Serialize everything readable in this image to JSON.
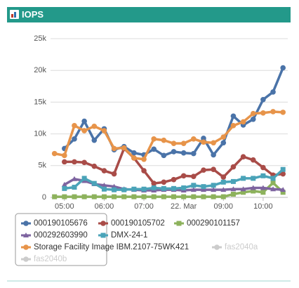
{
  "chart_data": {
    "type": "line",
    "title": "IOPS",
    "x": [
      4.75,
      5.0,
      5.25,
      5.5,
      5.75,
      6.0,
      6.25,
      6.5,
      6.75,
      7.0,
      7.25,
      7.5,
      7.75,
      8.0,
      8.25,
      8.5,
      8.75,
      9.0,
      9.25,
      9.5,
      9.75,
      10.0,
      10.25,
      10.5
    ],
    "xlim": [
      4.65,
      10.62
    ],
    "xticks": [
      {
        "value": 5,
        "label": "05:00"
      },
      {
        "value": 6,
        "label": "06:00"
      },
      {
        "value": 7,
        "label": "07:00"
      },
      {
        "value": 8,
        "label": "22. Mar"
      },
      {
        "value": 9,
        "label": "09:00"
      },
      {
        "value": 10,
        "label": "10:00"
      }
    ],
    "ylim": [
      0,
      25000
    ],
    "yticks": [
      {
        "value": 0,
        "label": "0"
      },
      {
        "value": 5000,
        "label": "5k"
      },
      {
        "value": 10000,
        "label": "10k"
      },
      {
        "value": 15000,
        "label": "15k"
      },
      {
        "value": 20000,
        "label": "20k"
      },
      {
        "value": 25000,
        "label": "25k"
      }
    ],
    "grid": true,
    "series": [
      {
        "name": "000190105676",
        "color": "#4a73a8",
        "marker": "circle",
        "values": [
          null,
          7700,
          9200,
          12000,
          9000,
          10800,
          7500,
          8000,
          7000,
          6700,
          7600,
          6600,
          7200,
          7000,
          6900,
          9300,
          6700,
          8600,
          12800,
          11400,
          12300,
          15400,
          16600,
          20400
        ]
      },
      {
        "name": "000190105702",
        "color": "#a94c48",
        "marker": "circle",
        "values": [
          null,
          5600,
          5600,
          5500,
          4900,
          4200,
          3700,
          7700,
          6200,
          4200,
          2200,
          2400,
          2800,
          3400,
          3300,
          4300,
          4400,
          3200,
          4800,
          6400,
          5900,
          4700,
          3500,
          3700
        ]
      },
      {
        "name": "000290101157",
        "color": "#8db25c",
        "marker": "square",
        "values": [
          100,
          100,
          100,
          100,
          100,
          100,
          100,
          100,
          100,
          100,
          100,
          100,
          100,
          100,
          100,
          100,
          100,
          100,
          500,
          800,
          1000,
          800,
          2300,
          800
        ]
      },
      {
        "name": "000292603990",
        "color": "#7e64a0",
        "marker": "triangle",
        "values": [
          null,
          2000,
          2900,
          2600,
          2100,
          1900,
          1700,
          1300,
          1200,
          1100,
          1100,
          1200,
          1200,
          1100,
          1200,
          1200,
          1200,
          1200,
          1300,
          1300,
          1500,
          1500,
          1300,
          1200
        ]
      },
      {
        "name": "DMX-24-1",
        "color": "#4aa3b8",
        "marker": "square",
        "values": [
          null,
          1400,
          1600,
          3000,
          2200,
          1300,
          1200,
          1200,
          1300,
          1300,
          1500,
          1400,
          1400,
          1500,
          1900,
          1700,
          1900,
          2400,
          2500,
          3000,
          3000,
          3400,
          3000,
          4400
        ]
      },
      {
        "name": "Storage Facility Image IBM.2107-75WK421",
        "color": "#e7944a",
        "marker": "circle",
        "values": [
          6900,
          6600,
          11300,
          10500,
          11200,
          10500,
          7700,
          7800,
          6200,
          6000,
          9200,
          9000,
          8500,
          8500,
          9200,
          8700,
          8600,
          9500,
          11300,
          11900,
          13200,
          13300,
          13500,
          13400
        ]
      }
    ],
    "hidden_series": [
      "fas2040a",
      "fas2040b"
    ],
    "hidden_color": "#cccccc"
  }
}
